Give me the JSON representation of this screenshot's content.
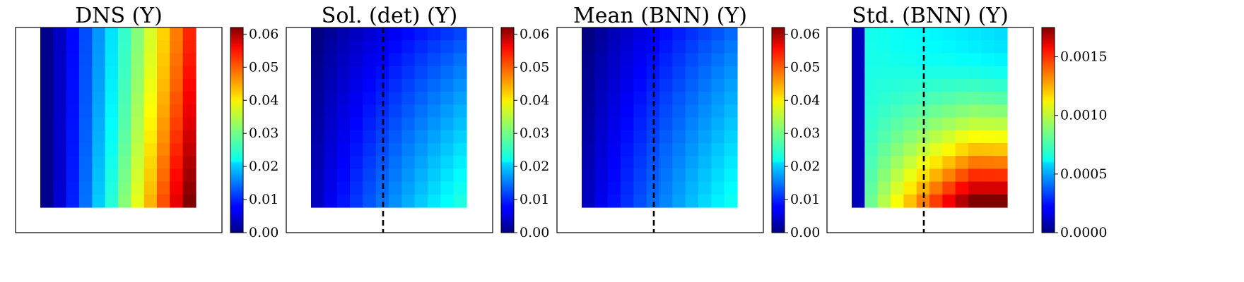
{
  "chart_data": [
    {
      "type": "heatmap",
      "title": "DNS (Y)",
      "colormap": "jet",
      "grid_shape": [
        14,
        12
      ],
      "has_divider_line": false,
      "colorbar": {
        "min": 0.0,
        "max": 0.062,
        "ticks": [
          0.0,
          0.01,
          0.02,
          0.03,
          0.04,
          0.05,
          0.06
        ],
        "tick_labels": [
          "0.00",
          "0.01",
          "0.02",
          "0.03",
          "0.04",
          "0.05",
          "0.06"
        ]
      },
      "column_range_top": [
        0.001,
        0.052
      ],
      "column_range_bottom": [
        0.001,
        0.062
      ]
    },
    {
      "type": "heatmap",
      "title": "Sol. (det) (Y)",
      "colormap": "jet",
      "grid_shape": [
        14,
        12
      ],
      "has_divider_line": true,
      "colorbar": {
        "min": 0.0,
        "max": 0.062,
        "ticks": [
          0.0,
          0.01,
          0.02,
          0.03,
          0.04,
          0.05,
          0.06
        ],
        "tick_labels": [
          "0.00",
          "0.01",
          "0.02",
          "0.03",
          "0.04",
          "0.05",
          "0.06"
        ]
      },
      "corner_values": {
        "top_left": 0.0,
        "top_right": 0.012,
        "bottom_left": 0.004,
        "bottom_right": 0.025
      }
    },
    {
      "type": "heatmap",
      "title": "Mean (BNN) (Y)",
      "colormap": "jet",
      "grid_shape": [
        14,
        12
      ],
      "has_divider_line": true,
      "colorbar": {
        "min": 0.0,
        "max": 0.062,
        "ticks": [
          0.0,
          0.01,
          0.02,
          0.03,
          0.04,
          0.05,
          0.06
        ],
        "tick_labels": [
          "0.00",
          "0.01",
          "0.02",
          "0.03",
          "0.04",
          "0.05",
          "0.06"
        ]
      },
      "corner_values": {
        "top_left": 0.0,
        "top_right": 0.014,
        "bottom_left": 0.004,
        "bottom_right": 0.024
      }
    },
    {
      "type": "heatmap",
      "title": "Std. (BNN) (Y)",
      "colormap": "jet",
      "grid_shape": [
        14,
        12
      ],
      "has_divider_line": true,
      "colorbar": {
        "min": 0.0,
        "max": 0.00175,
        "ticks": [
          0.0,
          0.0005,
          0.001,
          0.0015
        ],
        "tick_labels": [
          "0.0000",
          "0.0005",
          "0.0010",
          "0.0015"
        ]
      },
      "corner_values": {
        "top_left": 0.0007,
        "top_right": 0.0006,
        "bottom_left": 0.0007,
        "bottom_right": 0.00175
      },
      "first_column_value": 0.0001
    }
  ]
}
